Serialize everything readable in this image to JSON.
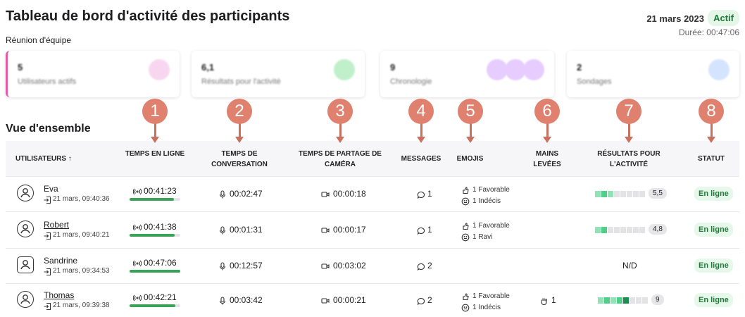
{
  "header": {
    "title": "Tableau de bord d'activité des participants",
    "subtitle": "Réunion d'équipe",
    "date": "21 mars 2023",
    "status": "Actif",
    "duration": "Durée: 00:47:06"
  },
  "cards": [
    {
      "value": "5",
      "label": "Utilisateurs actifs"
    },
    {
      "value": "6,1",
      "label": "Résultats pour l'activité"
    },
    {
      "value": "9",
      "label": "Chronologie"
    },
    {
      "value": "2",
      "label": "Sondages"
    }
  ],
  "section_title": "Vue d'ensemble",
  "callouts": [
    "1",
    "2",
    "3",
    "4",
    "5",
    "6",
    "7",
    "8"
  ],
  "table": {
    "columns": [
      "UTILISATEURS ↑",
      "TEMPS EN LIGNE",
      "TEMPS DE CONVERSATION",
      "TEMPS DE PARTAGE DE CAMÉRA",
      "MESSAGES",
      "EMOJIS",
      "MAINS LEVÉES",
      "RÉSULTATS POUR L'ACTIVITÉ",
      "STATUT"
    ],
    "rows": [
      {
        "name": "Eva",
        "joined": "21 mars, 09:40:36",
        "online": "00:41:23",
        "talk": "00:02:47",
        "camera": "00:00:18",
        "messages": "1",
        "emojis": [
          "1 Favorable",
          "1 Indécis"
        ],
        "hands": null,
        "result": "5,5",
        "status": "En ligne"
      },
      {
        "name": "Robert",
        "joined": "21 mars, 09:40:21",
        "online": "00:41:38",
        "talk": "00:01:31",
        "camera": "00:00:17",
        "messages": "1",
        "emojis": [
          "1 Favorable",
          "1 Ravi"
        ],
        "hands": null,
        "result": "4,8",
        "status": "En ligne"
      },
      {
        "name": "Sandrine",
        "joined": "21 mars, 09:34:53",
        "online": "00:47:06",
        "talk": "00:12:57",
        "camera": "00:03:02",
        "messages": "2",
        "emojis": [],
        "hands": null,
        "result": "N/D",
        "status": "En ligne"
      },
      {
        "name": "Thomas",
        "joined": "21 mars, 09:39:38",
        "online": "00:42:21",
        "talk": "00:03:42",
        "camera": "00:00:21",
        "messages": "2",
        "emojis": [
          "1 Favorable",
          "1 Indécis"
        ],
        "hands": "1",
        "result": "9",
        "status": "En ligne"
      }
    ]
  }
}
